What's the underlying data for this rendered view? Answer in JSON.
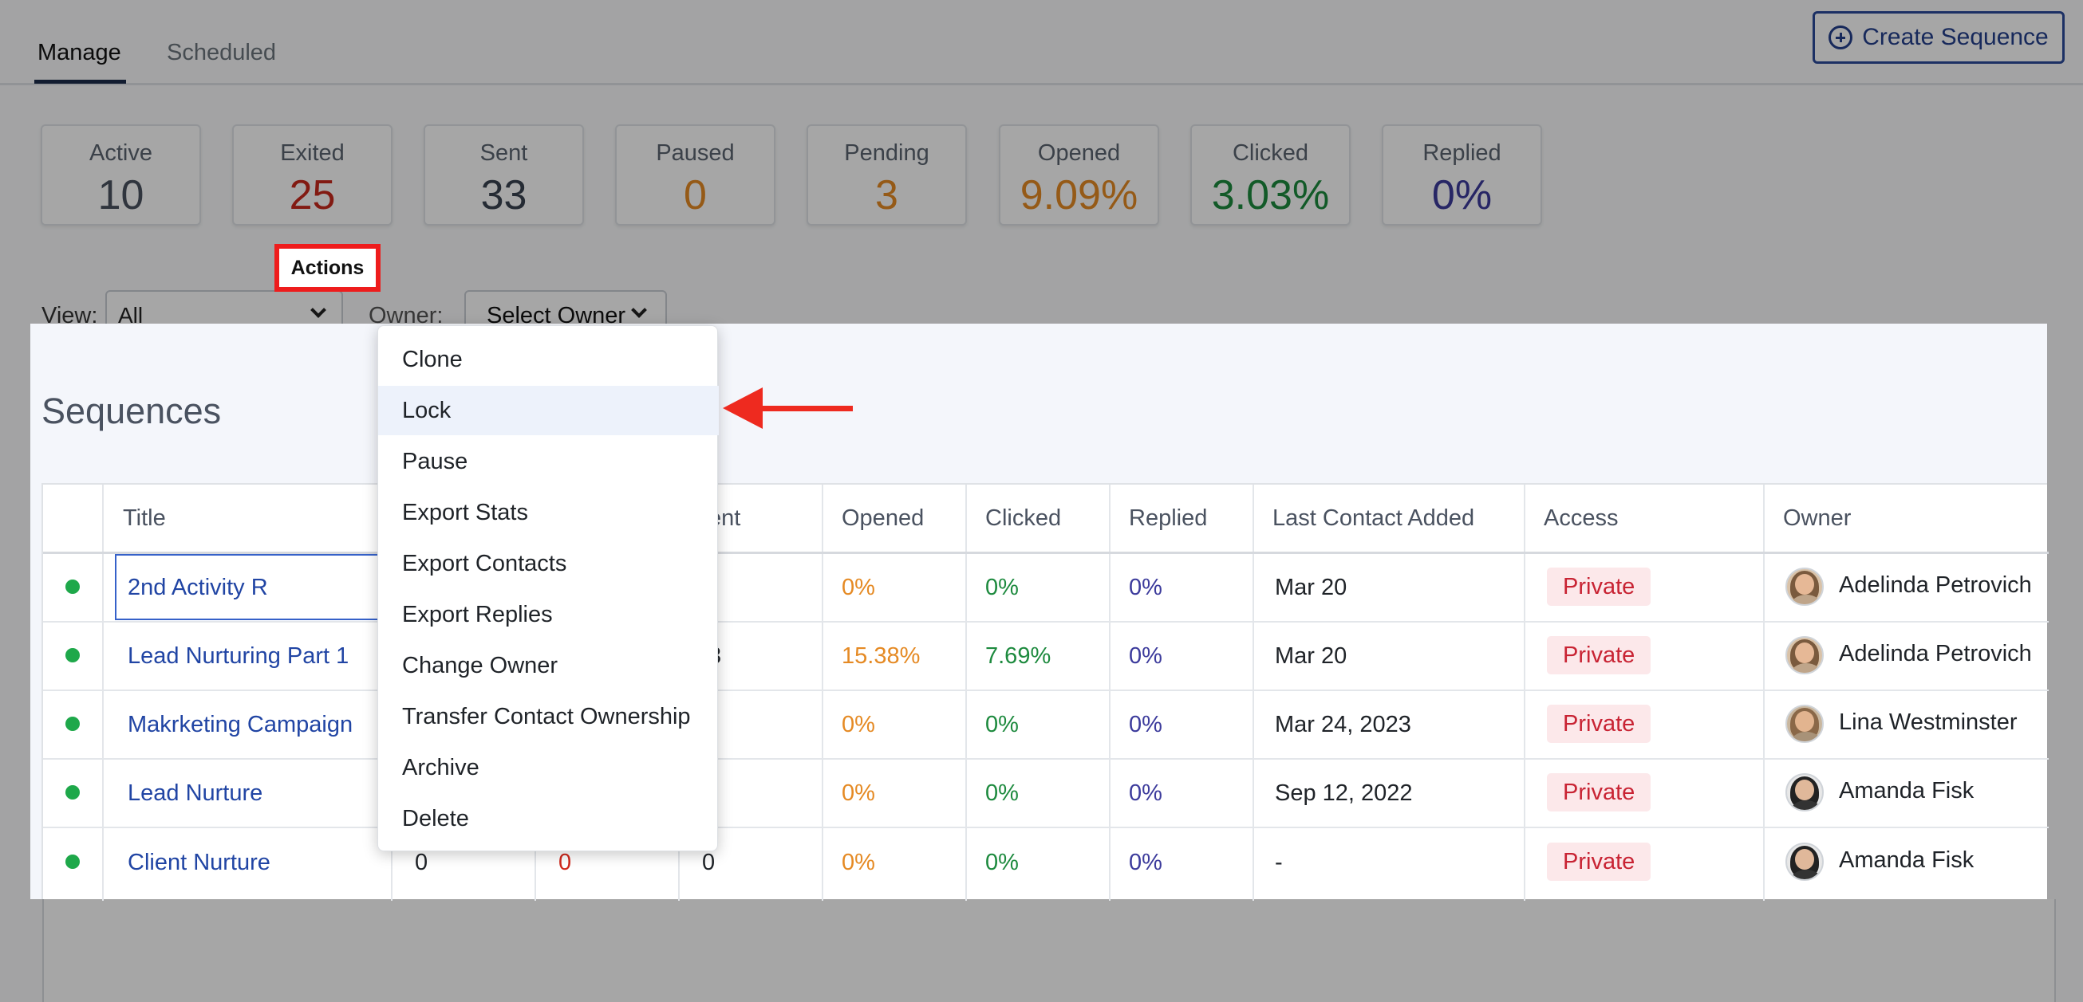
{
  "tabs": [
    {
      "label": "Manage",
      "active": true
    },
    {
      "label": "Scheduled",
      "active": false
    }
  ],
  "create_button": {
    "label": "Create Sequence",
    "icon": "plus-circle-icon"
  },
  "stats": [
    {
      "label": "Active",
      "value": "10",
      "color": "#4a5260"
    },
    {
      "label": "Exited",
      "value": "25",
      "color": "#c8281c"
    },
    {
      "label": "Sent",
      "value": "33",
      "color": "#3a4250"
    },
    {
      "label": "Paused",
      "value": "0",
      "color": "#e58a24"
    },
    {
      "label": "Pending",
      "value": "3",
      "color": "#e58a24"
    },
    {
      "label": "Opened",
      "value": "9.09%",
      "color": "#e58a24"
    },
    {
      "label": "Clicked",
      "value": "3.03%",
      "color": "#1d8a3e"
    },
    {
      "label": "Replied",
      "value": "0%",
      "color": "#3c3b9c"
    }
  ],
  "filters": {
    "view_label": "View:",
    "view_value": "All",
    "owner_label": "Owner:",
    "owner_value": "Select Owner"
  },
  "section_title": "Sequences",
  "table": {
    "columns": [
      "",
      "Title",
      "",
      "",
      "ent",
      "Opened",
      "Clicked",
      "Replied",
      "Last Contact Added",
      "Access",
      "Owner"
    ],
    "rows": [
      {
        "title": "2nd Activity R",
        "c1": "",
        "c2": "",
        "c3": "",
        "opened": "0%",
        "clicked": "0%",
        "replied": "0%",
        "last": "Mar 20",
        "access": "Private",
        "owner": "Adelinda Petrovich"
      },
      {
        "title": "Lead Nurturing Part 1",
        "c1": "",
        "c2": "",
        "c3": "3",
        "opened": "15.38%",
        "clicked": "7.69%",
        "replied": "0%",
        "last": "Mar 20",
        "access": "Private",
        "owner": "Adelinda Petrovich"
      },
      {
        "title": "Makrketing Campaign",
        "c1": "",
        "c2": "",
        "c3": "",
        "opened": "0%",
        "clicked": "0%",
        "replied": "0%",
        "last": "Mar 24, 2023",
        "access": "Private",
        "owner": "Lina Westminster"
      },
      {
        "title": "Lead Nurture",
        "c1": "",
        "c2": "",
        "c3": "",
        "opened": "0%",
        "clicked": "0%",
        "replied": "0%",
        "last": "Sep 12, 2022",
        "access": "Private",
        "owner": "Amanda Fisk"
      },
      {
        "title": "Client Nurture",
        "c1": "0",
        "c2": "0",
        "c3": "0",
        "opened": "0%",
        "clicked": "0%",
        "replied": "0%",
        "last": "-",
        "access": "Private",
        "owner": "Amanda Fisk"
      }
    ]
  },
  "actions_button": {
    "label": "Actions"
  },
  "menu": {
    "items": [
      "Clone",
      "Lock",
      "Pause",
      "Export Stats",
      "Export Contacts",
      "Export Replies",
      "Change Owner",
      "Transfer Contact Ownership",
      "Archive",
      "Delete"
    ],
    "highlighted": "Lock"
  },
  "annotation_color": "#ee2a1f"
}
